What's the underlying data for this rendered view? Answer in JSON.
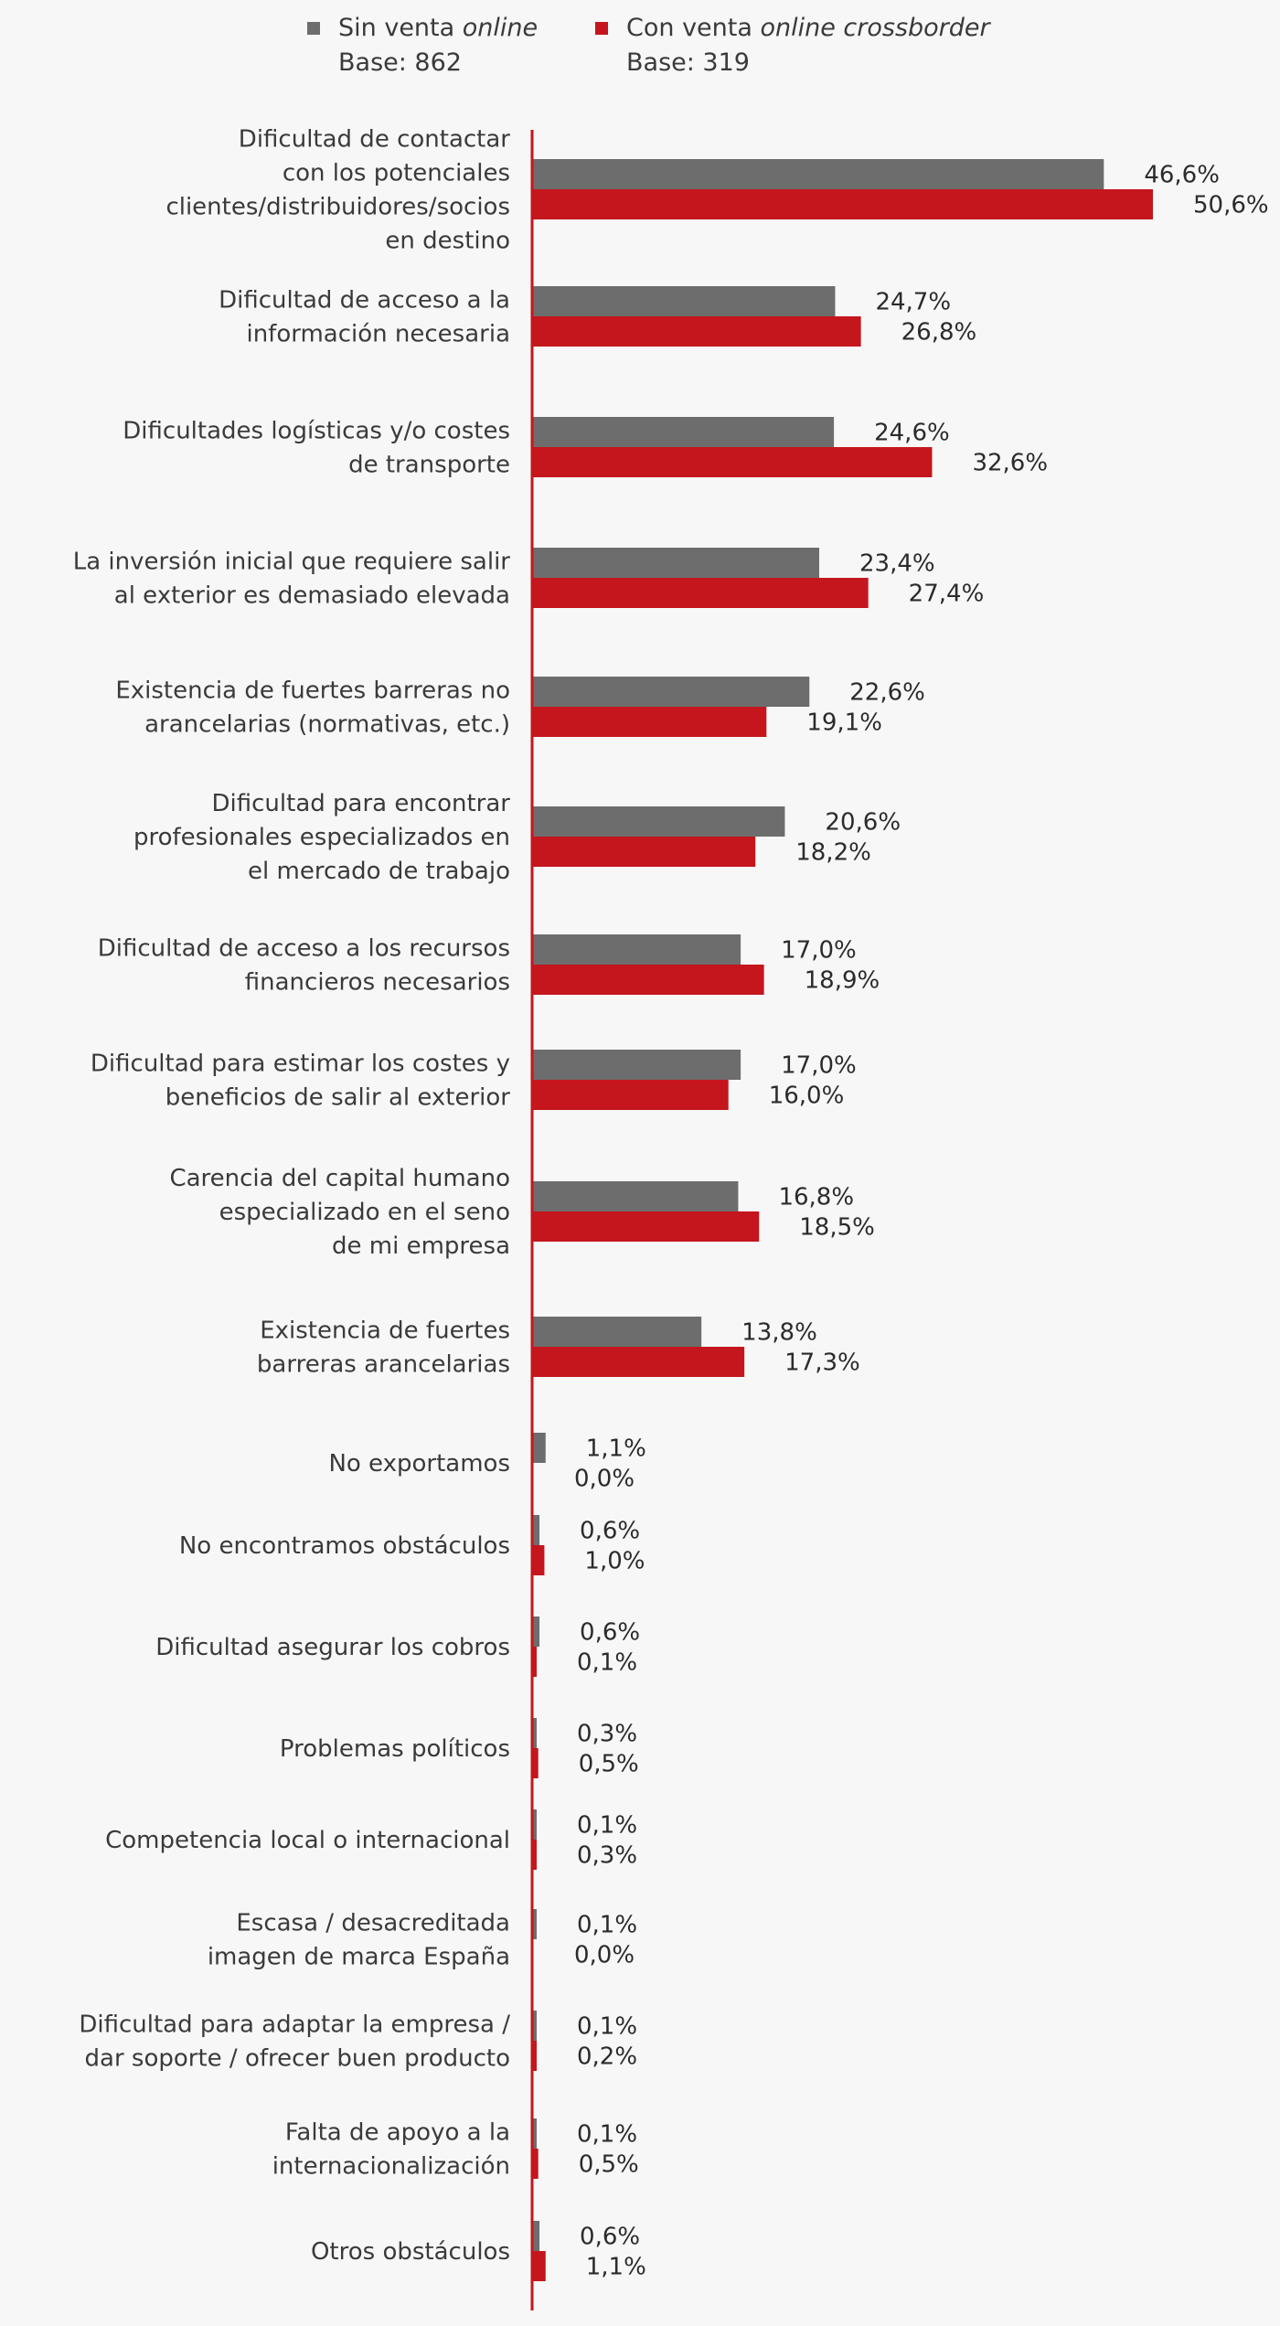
{
  "legend": {
    "series_a": {
      "prefix": "Sin venta ",
      "italic": "online",
      "base": "Base: 862",
      "color": "#6d6d6d"
    },
    "series_b": {
      "prefix": "Con venta ",
      "italic": "online crossborder",
      "base": "Base: 319",
      "color": "#c4161c"
    }
  },
  "chart_data": {
    "type": "bar",
    "orientation": "horizontal",
    "title": "",
    "xlabel": "",
    "ylabel": "",
    "xlim": [
      0,
      50.6
    ],
    "grid": false,
    "legend_position": "top",
    "axis_color": "#c4161c",
    "categories": [
      "Dificultad de contactar\ncon los potenciales\nclientes/distribuidores/socios\nen destino",
      "Dificultad de acceso a la\ninformación necesaria",
      "Dificultades logísticas y/o costes\nde transporte",
      "La inversión inicial que requiere salir\nal exterior es demasiado elevada",
      "Existencia de fuertes barreras no\narancelarias (normativas, etc.)",
      "Dificultad para encontrar\nprofesionales especializados en\nel mercado de trabajo",
      "Dificultad de acceso a los recursos\nfinancieros necesarios",
      "Dificultad para estimar los costes y\nbeneficios de salir al exterior",
      "Carencia del capital humano\nespecializado en el seno\nde mi empresa",
      "Existencia de fuertes\nbarreras arancelarias",
      "No exportamos",
      "No encontramos obstáculos",
      "Dificultad asegurar los cobros",
      "Problemas políticos",
      "Competencia local o internacional",
      "Escasa / desacreditada\nimagen de marca España",
      "Dificultad para adaptar la empresa /\ndar soporte / ofrecer buen producto",
      "Falta de apoyo a la\ninternacionalización",
      "Otros obstáculos"
    ],
    "series": [
      {
        "color": "#6d6d6d",
        "values": [
          46.6,
          24.7,
          24.6,
          23.4,
          22.6,
          20.6,
          17.0,
          17.0,
          16.8,
          13.8,
          1.1,
          0.6,
          0.6,
          0.3,
          0.1,
          0.1,
          0.1,
          0.1,
          0.6
        ],
        "labels": [
          "46,6%",
          "24,7%",
          "24,6%",
          "23,4%",
          "22,6%",
          "20,6%",
          "17,0%",
          "17,0%",
          "16,8%",
          "13,8%",
          "1,1%",
          "0,6%",
          "0,6%",
          "0,3%",
          "0,1%",
          "0,1%",
          "0,1%",
          "0,1%",
          "0,6%"
        ]
      },
      {
        "color": "#c4161c",
        "values": [
          50.6,
          26.8,
          32.6,
          27.4,
          19.1,
          18.2,
          18.9,
          16.0,
          18.5,
          17.3,
          0.0,
          1.0,
          0.1,
          0.5,
          0.3,
          0.0,
          0.2,
          0.5,
          1.1
        ],
        "labels": [
          "50,6%",
          "26,8%",
          "32,6%",
          "27,4%",
          "19,1%",
          "18,2%",
          "18,9%",
          "16,0%",
          "18,5%",
          "17,3%",
          "0,0%",
          "1,0%",
          "0,1%",
          "0,5%",
          "0,3%",
          "0,0%",
          "0,2%",
          "0,5%",
          "1,1%"
        ]
      }
    ]
  }
}
